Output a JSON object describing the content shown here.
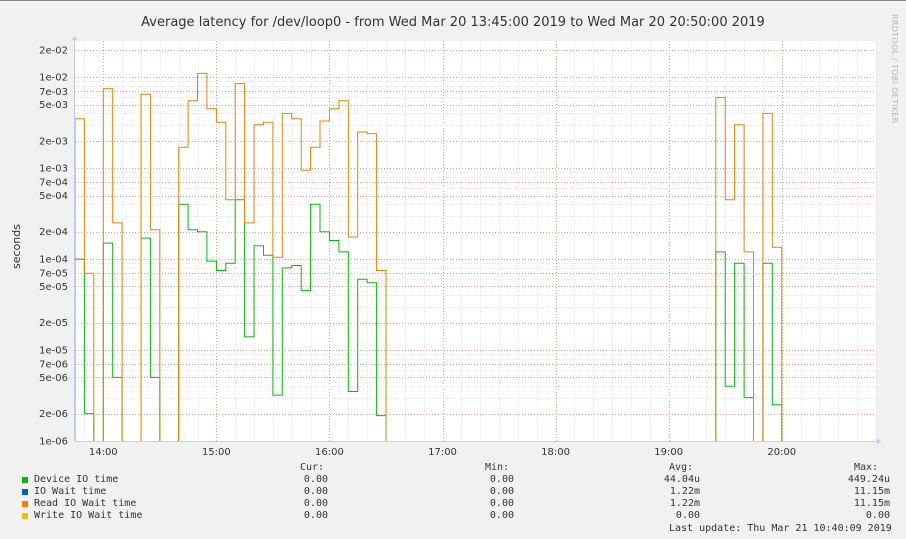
{
  "title": "Average latency for /dev/loop0 - from Wed Mar 20 13:45:00 2019 to Wed Mar 20 20:50:00 2019",
  "side_label": "RRDTOOL / TOBI OETIKER",
  "ylabel": "seconds",
  "legend_headers": {
    "cur": "Cur:",
    "min": "Min:",
    "avg": "Avg:",
    "max": "Max:"
  },
  "legend": [
    {
      "name": "Device IO time",
      "color": "#00c000",
      "cur": "0.00",
      "min": "0.00",
      "avg": "44.04u",
      "max": "449.24u"
    },
    {
      "name": "IO Wait time",
      "color": "#0060c0",
      "cur": "0.00",
      "min": "0.00",
      "avg": "1.22m",
      "max": "11.15m"
    },
    {
      "name": "Read IO Wait time",
      "color": "#f08000",
      "cur": "0.00",
      "min": "0.00",
      "avg": "1.22m",
      "max": "11.15m"
    },
    {
      "name": "Write IO Wait time",
      "color": "#f0c000",
      "cur": "0.00",
      "min": "0.00",
      "avg": "0.00",
      "max": "0.00"
    }
  ],
  "last_update": "Last update: Thu Mar 21 10:40:09 2019",
  "chart_data": {
    "type": "line",
    "title": "Average latency for /dev/loop0 - from Wed Mar 20 13:45:00 2019 to Wed Mar 20 20:50:00 2019",
    "ylabel": "seconds",
    "y_scale": "log",
    "ylim": [
      1e-06,
      0.025
    ],
    "xlim": [
      "13:45",
      "20:50"
    ],
    "x_ticks": [
      "14:00",
      "15:00",
      "16:00",
      "17:00",
      "18:00",
      "19:00",
      "20:00"
    ],
    "y_ticks": [
      "2e-02",
      "1e-02",
      "7e-03",
      "5e-03",
      "2e-03",
      "1e-03",
      "7e-04",
      "5e-04",
      "2e-04",
      "1e-04",
      "7e-05",
      "5e-05",
      "2e-05",
      "1e-05",
      "7e-06",
      "5e-06",
      "2e-06",
      "1e-06"
    ],
    "grid": true,
    "series": [
      {
        "name": "Device IO time",
        "color": "#00c000",
        "points": [
          [
            "13:45",
            0.0001
          ],
          [
            "13:50",
            2e-06
          ],
          [
            "13:55",
            null
          ],
          [
            "14:00",
            0.00015
          ],
          [
            "14:05",
            5e-06
          ],
          [
            "14:10",
            null
          ],
          [
            "14:20",
            0.00017
          ],
          [
            "14:25",
            5e-06
          ],
          [
            "14:30",
            null
          ],
          [
            "14:40",
            0.0004
          ],
          [
            "14:45",
            0.00021
          ],
          [
            "14:50",
            0.0002
          ],
          [
            "14:55",
            9.5e-05
          ],
          [
            "15:00",
            7.5e-05
          ],
          [
            "15:05",
            9e-05
          ],
          [
            "15:10",
            0.00045
          ],
          [
            "15:15",
            1.4e-05
          ],
          [
            "15:20",
            0.00014
          ],
          [
            "15:25",
            0.00011
          ],
          [
            "15:30",
            3.2e-06
          ],
          [
            "15:35",
            8e-05
          ],
          [
            "15:40",
            8.5e-05
          ],
          [
            "15:45",
            4.5e-05
          ],
          [
            "15:50",
            0.0004
          ],
          [
            "15:55",
            0.0002
          ],
          [
            "16:00",
            0.00016
          ],
          [
            "16:05",
            0.00012
          ],
          [
            "16:10",
            3.5e-06
          ],
          [
            "16:15",
            6e-05
          ],
          [
            "16:20",
            5.5e-05
          ],
          [
            "16:25",
            1.9e-06
          ],
          [
            "16:30",
            null
          ],
          [
            "19:25",
            0.00012
          ],
          [
            "19:30",
            4e-06
          ],
          [
            "19:35",
            9e-05
          ],
          [
            "19:40",
            3e-06
          ],
          [
            "19:45",
            null
          ],
          [
            "19:50",
            9e-05
          ],
          [
            "19:55",
            2.5e-06
          ],
          [
            "20:00",
            null
          ]
        ]
      },
      {
        "name": "IO Wait time",
        "color": "#0060c0",
        "points": []
      },
      {
        "name": "Read IO Wait time",
        "color": "#f08000",
        "points": [
          [
            "13:45",
            0.0035
          ],
          [
            "13:50",
            7e-05
          ],
          [
            "13:55",
            null
          ],
          [
            "14:00",
            0.0075
          ],
          [
            "14:05",
            0.00025
          ],
          [
            "14:10",
            null
          ],
          [
            "14:20",
            0.0065
          ],
          [
            "14:25",
            0.00021
          ],
          [
            "14:30",
            null
          ],
          [
            "14:40",
            0.0017
          ],
          [
            "14:45",
            0.0055
          ],
          [
            "14:50",
            0.011
          ],
          [
            "14:55",
            0.0045
          ],
          [
            "15:00",
            0.0032
          ],
          [
            "15:05",
            0.00045
          ],
          [
            "15:10",
            0.0085
          ],
          [
            "15:15",
            0.00025
          ],
          [
            "15:20",
            0.003
          ],
          [
            "15:25",
            0.0032
          ],
          [
            "15:30",
            0.000105
          ],
          [
            "15:35",
            0.004
          ],
          [
            "15:40",
            0.0035
          ],
          [
            "15:45",
            0.00095
          ],
          [
            "15:50",
            0.0017
          ],
          [
            "15:55",
            0.0033
          ],
          [
            "16:00",
            0.0045
          ],
          [
            "16:05",
            0.0055
          ],
          [
            "16:10",
            0.000175
          ],
          [
            "16:15",
            0.0025
          ],
          [
            "16:20",
            0.0024
          ],
          [
            "16:25",
            7.5e-05
          ],
          [
            "16:30",
            null
          ],
          [
            "19:25",
            0.006
          ],
          [
            "19:30",
            0.00045
          ],
          [
            "19:35",
            0.003
          ],
          [
            "19:40",
            0.00012
          ],
          [
            "19:45",
            null
          ],
          [
            "19:50",
            0.004
          ],
          [
            "19:55",
            0.000135
          ],
          [
            "20:00",
            null
          ]
        ]
      },
      {
        "name": "Write IO Wait time",
        "color": "#f0c000",
        "points": []
      }
    ]
  }
}
